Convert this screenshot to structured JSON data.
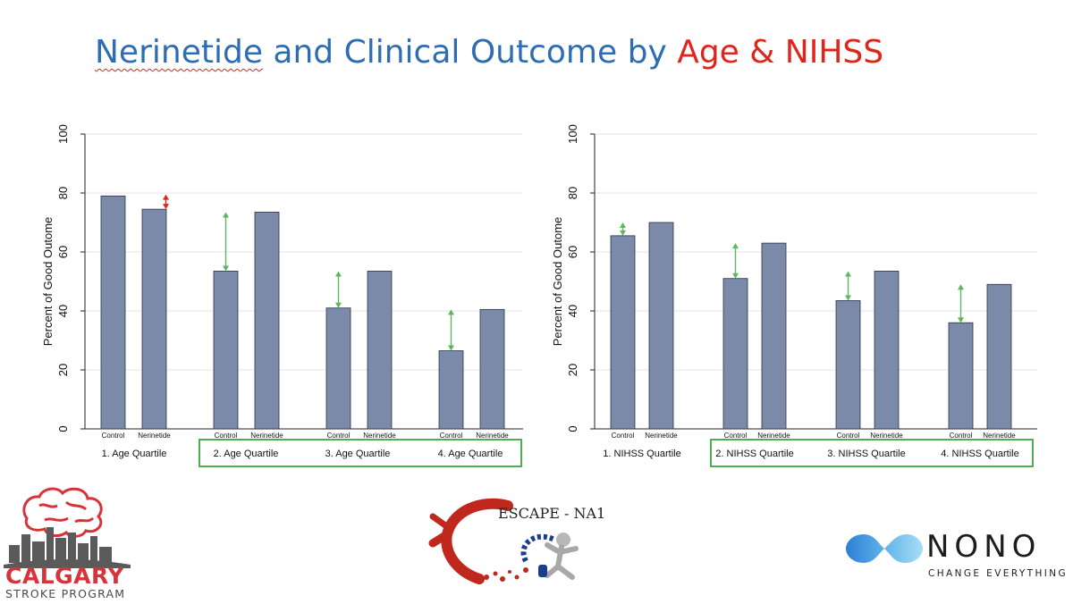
{
  "slide": {
    "title_main": "Nerinetide and Clinical Outcome by ",
    "title_highlight": "Age & NIHSS",
    "title_spellcheck_word": "Nerinetide"
  },
  "colors": {
    "bar": "#7a8aa8",
    "bar_stroke": "#2a3346",
    "title": "#2e6db4",
    "highlight": "#e0261c",
    "arrow_green": "#5cb85c",
    "arrow_red": "#e0261c",
    "box_green": "#4caf50"
  },
  "chart_data": [
    {
      "type": "bar",
      "ylabel": "Percent of Good Outome",
      "ylim": [
        0,
        100
      ],
      "yticks": [
        0,
        20,
        40,
        60,
        80,
        100
      ],
      "grid": true,
      "groups": [
        {
          "label": "1. Age Quartile",
          "bars": [
            {
              "label": "Control",
              "value": 79
            },
            {
              "label": "Nerinetide",
              "value": 74.5
            }
          ],
          "arrow": {
            "from": 79,
            "to": 74.5,
            "color": "red"
          }
        },
        {
          "label": "2. Age Quartile",
          "bars": [
            {
              "label": "Control",
              "value": 53.5
            },
            {
              "label": "Nerinetide",
              "value": 73.5
            }
          ],
          "arrow": {
            "from": 53.5,
            "to": 73.5,
            "color": "green"
          }
        },
        {
          "label": "3. Age Quartile",
          "bars": [
            {
              "label": "Control",
              "value": 41
            },
            {
              "label": "Nerinetide",
              "value": 53.5
            }
          ],
          "arrow": {
            "from": 41,
            "to": 53.5,
            "color": "green"
          }
        },
        {
          "label": "4. Age Quartile",
          "bars": [
            {
              "label": "Control",
              "value": 26.5
            },
            {
              "label": "Nerinetide",
              "value": 40.5
            }
          ],
          "arrow": {
            "from": 26.5,
            "to": 40.5,
            "color": "green"
          }
        }
      ],
      "highlighted_groups": [
        1,
        2,
        3
      ]
    },
    {
      "type": "bar",
      "ylabel": "Percent of Good Outome",
      "ylim": [
        0,
        100
      ],
      "yticks": [
        0,
        20,
        40,
        60,
        80,
        100
      ],
      "grid": true,
      "groups": [
        {
          "label": "1. NIHSS Quartile",
          "bars": [
            {
              "label": "Control",
              "value": 65.5
            },
            {
              "label": "Nerinetide",
              "value": 70
            }
          ],
          "arrow": {
            "from": 65.5,
            "to": 70,
            "color": "green"
          }
        },
        {
          "label": "2. NIHSS Quartile",
          "bars": [
            {
              "label": "Control",
              "value": 51
            },
            {
              "label": "Nerinetide",
              "value": 63
            }
          ],
          "arrow": {
            "from": 51,
            "to": 63,
            "color": "green"
          }
        },
        {
          "label": "3. NIHSS Quartile",
          "bars": [
            {
              "label": "Control",
              "value": 43.5
            },
            {
              "label": "Nerinetide",
              "value": 53.5
            }
          ],
          "arrow": {
            "from": 43.5,
            "to": 53.5,
            "color": "green"
          }
        },
        {
          "label": "4. NIHSS Quartile",
          "bars": [
            {
              "label": "Control",
              "value": 36
            },
            {
              "label": "Nerinetide",
              "value": 49
            }
          ],
          "arrow": {
            "from": 36,
            "to": 49,
            "color": "green"
          }
        }
      ],
      "highlighted_groups": [
        1,
        2,
        3
      ]
    }
  ],
  "logos": {
    "calgary_name": "CALGARY",
    "calgary_program": "STROKE PROGRAM",
    "escape_name": "ESCAPE - NA1",
    "nono_name": "NONO",
    "nono_tagline": "CHANGE EVERYTHING"
  }
}
